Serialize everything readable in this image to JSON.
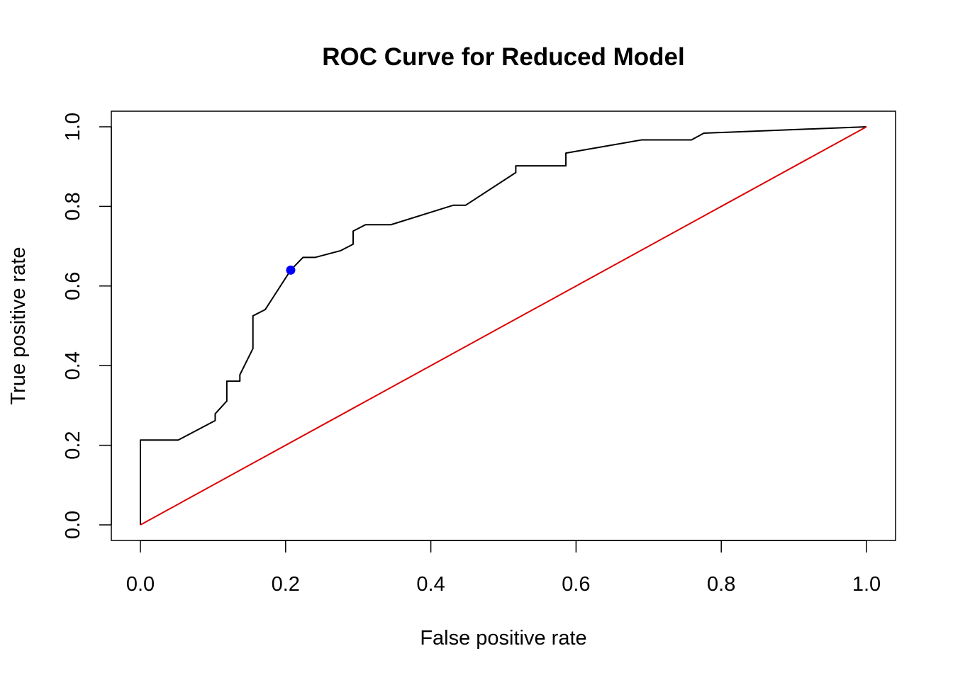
{
  "chart_data": {
    "type": "line",
    "title": "ROC Curve for Reduced Model",
    "xlabel": "False positive rate",
    "ylabel": "True positive rate",
    "xlim": [
      0,
      1
    ],
    "ylim": [
      0,
      1
    ],
    "x_ticks": [
      0.0,
      0.2,
      0.4,
      0.6,
      0.8,
      1.0
    ],
    "x_tick_labels": [
      "0.0",
      "0.2",
      "0.4",
      "0.6",
      "0.8",
      "1.0"
    ],
    "y_ticks": [
      0.0,
      0.2,
      0.4,
      0.6,
      0.8,
      1.0
    ],
    "y_tick_labels": [
      "0.0",
      "0.2",
      "0.4",
      "0.6",
      "0.8",
      "1.0"
    ],
    "grid": false,
    "legend": "none",
    "series": [
      {
        "color": "#000000",
        "x": [
          0.0,
          0.0,
          0.052,
          0.103,
          0.103,
          0.119,
          0.119,
          0.137,
          0.137,
          0.155,
          0.155,
          0.172,
          0.207,
          0.224,
          0.241,
          0.276,
          0.293,
          0.293,
          0.31,
          0.345,
          0.431,
          0.448,
          0.517,
          0.517,
          0.586,
          0.586,
          0.69,
          0.759,
          0.776,
          1.0
        ],
        "y": [
          0.0,
          0.213,
          0.213,
          0.262,
          0.279,
          0.311,
          0.361,
          0.361,
          0.377,
          0.443,
          0.525,
          0.541,
          0.64,
          0.672,
          0.672,
          0.689,
          0.705,
          0.738,
          0.754,
          0.754,
          0.803,
          0.803,
          0.885,
          0.902,
          0.902,
          0.934,
          0.967,
          0.967,
          0.984,
          1.0
        ]
      },
      {
        "color": "#dd0000",
        "x": [
          0.0,
          1.0
        ],
        "y": [
          0.0,
          1.0
        ]
      }
    ],
    "highlight_point": {
      "x": 0.207,
      "y": 0.64,
      "color": "#0000ff"
    }
  }
}
